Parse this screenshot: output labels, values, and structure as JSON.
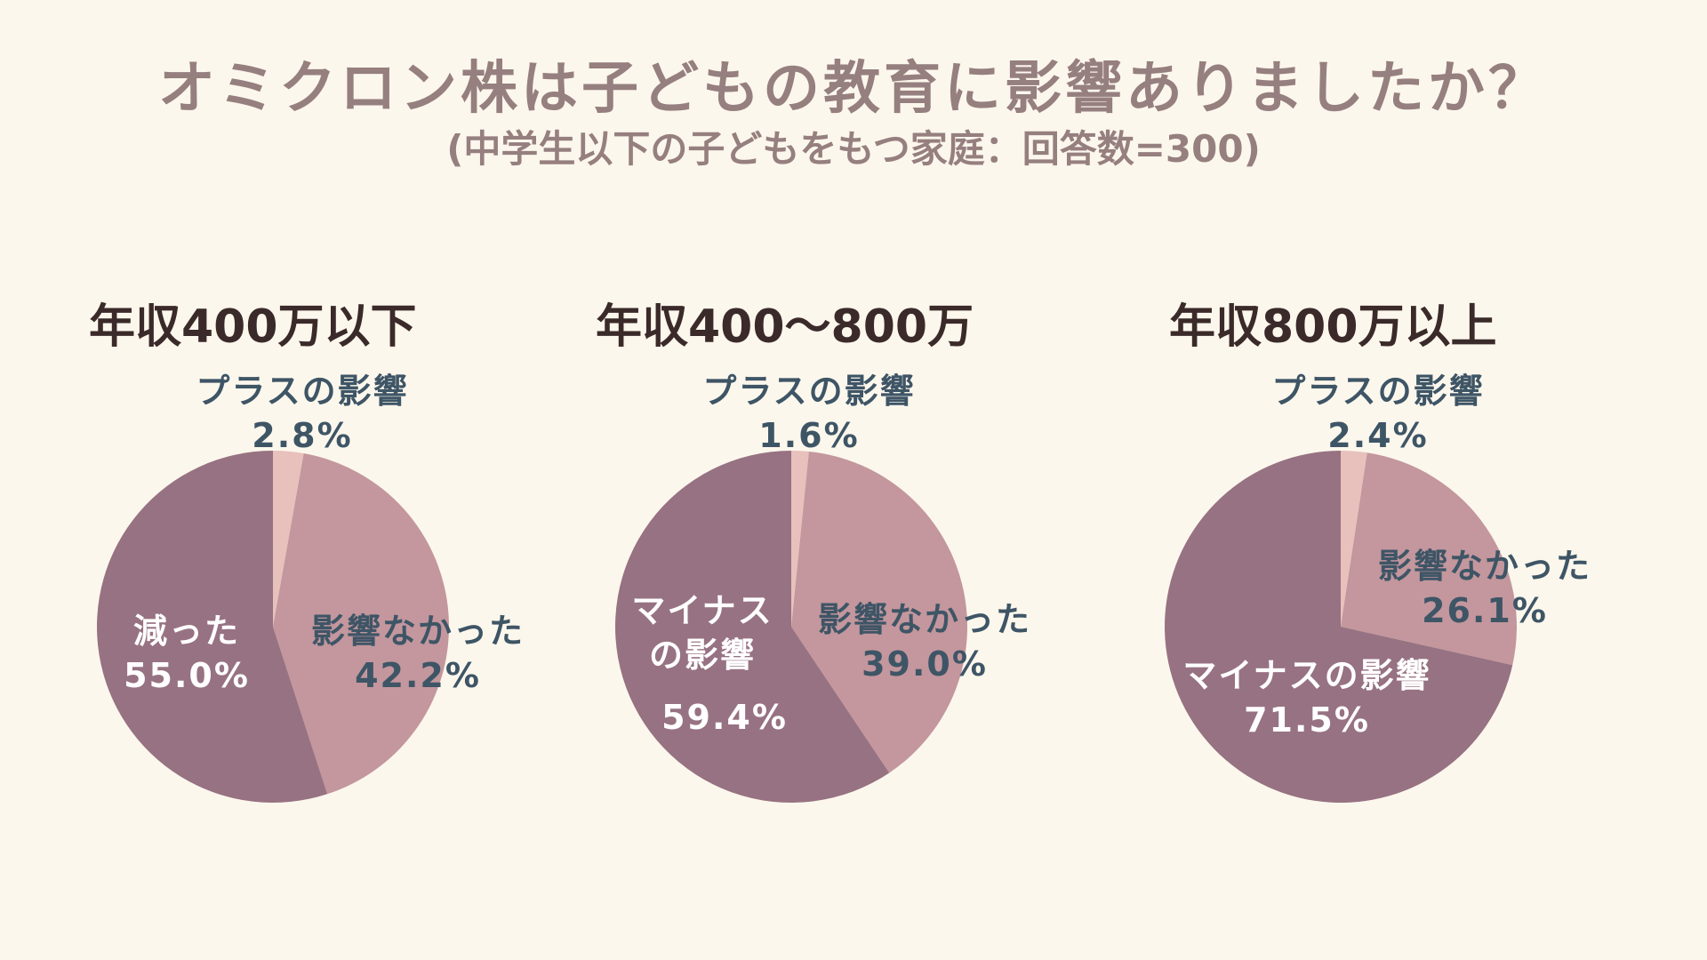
{
  "title": "オミクロン株は子どもの教育に影響ありましたか？",
  "subtitle": "(中学生以下の子どもをもつ家庭：回答数=300)",
  "colors": {
    "background": "#fcf7ec",
    "plus": "#e8c1bc",
    "none": "#c3979d",
    "minus": "#977282",
    "text_title": "#967f7f",
    "text_label": "#3e5566"
  },
  "chart_data": [
    {
      "type": "pie",
      "title": "年収400万以下",
      "slices": [
        {
          "label": "プラスの影響",
          "value": 2.8,
          "display": "2.8%"
        },
        {
          "label": "影響なかった",
          "value": 42.2,
          "display": "42.2%"
        },
        {
          "label": "減った",
          "value": 55.0,
          "display": "55.0%"
        }
      ]
    },
    {
      "type": "pie",
      "title": "年収400〜800万",
      "slices": [
        {
          "label": "プラスの影響",
          "value": 1.6,
          "display": "1.6%"
        },
        {
          "label": "影響なかった",
          "value": 39.0,
          "display": "39.0%"
        },
        {
          "label": "マイナスの影響",
          "value": 59.4,
          "display": "59.4%"
        }
      ]
    },
    {
      "type": "pie",
      "title": "年収800万以上",
      "slices": [
        {
          "label": "プラスの影響",
          "value": 2.4,
          "display": "2.4%"
        },
        {
          "label": "影響なかった",
          "value": 26.1,
          "display": "26.1%"
        },
        {
          "label": "マイナスの影響",
          "value": 71.5,
          "display": "71.5%"
        }
      ]
    }
  ]
}
